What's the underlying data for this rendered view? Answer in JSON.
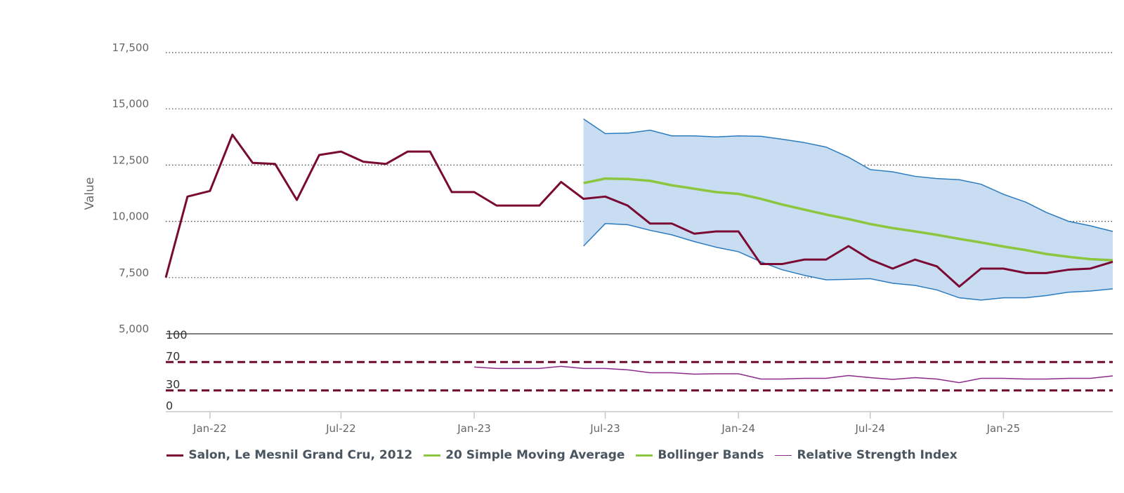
{
  "chart_data": {
    "type": "line",
    "ylabel": "Value",
    "ylim": [
      5000,
      17500
    ],
    "yticks": [
      "5,000",
      "7,500",
      "10,000",
      "12,500",
      "15,000",
      "17,500"
    ],
    "xticks": [
      "Jan-22",
      "Jul-22",
      "Jan-23",
      "Jul-23",
      "Jan-24",
      "Jul-24",
      "Jan-25"
    ],
    "grid": true,
    "legend_position": "bottom",
    "rsi_axis": {
      "ylim": [
        0,
        100
      ],
      "ticks": [
        "100",
        "70",
        "30",
        "0"
      ],
      "thresholds": [
        70,
        30
      ]
    },
    "series": [
      {
        "name": "Salon, Le Mesnil Grand Cru, 2012",
        "color": "#7a0a33",
        "points": [
          [
            "2021-11-01",
            7500
          ],
          [
            "2021-12-01",
            11100
          ],
          [
            "2022-01-01",
            11350
          ],
          [
            "2022-02-01",
            13850
          ],
          [
            "2022-03-01",
            12600
          ],
          [
            "2022-04-01",
            12550
          ],
          [
            "2022-05-01",
            10950
          ],
          [
            "2022-06-01",
            12950
          ],
          [
            "2022-07-01",
            13100
          ],
          [
            "2022-08-01",
            12650
          ],
          [
            "2022-09-01",
            12550
          ],
          [
            "2022-10-01",
            13100
          ],
          [
            "2022-11-01",
            13100
          ],
          [
            "2022-12-01",
            11300
          ],
          [
            "2023-01-01",
            11300
          ],
          [
            "2023-02-01",
            10700
          ],
          [
            "2023-03-01",
            10700
          ],
          [
            "2023-04-01",
            10700
          ],
          [
            "2023-05-01",
            11750
          ],
          [
            "2023-06-01",
            11000
          ],
          [
            "2023-07-01",
            11100
          ],
          [
            "2023-08-01",
            10700
          ],
          [
            "2023-09-01",
            9900
          ],
          [
            "2023-10-01",
            9900
          ],
          [
            "2023-11-01",
            9450
          ],
          [
            "2023-12-01",
            9550
          ],
          [
            "2024-01-01",
            9550
          ],
          [
            "2024-02-01",
            8100
          ],
          [
            "2024-03-01",
            8100
          ],
          [
            "2024-04-01",
            8300
          ],
          [
            "2024-05-01",
            8300
          ],
          [
            "2024-06-01",
            8900
          ],
          [
            "2024-07-01",
            8300
          ],
          [
            "2024-08-01",
            7900
          ],
          [
            "2024-09-01",
            8300
          ],
          [
            "2024-10-01",
            8000
          ],
          [
            "2024-11-01",
            7100
          ],
          [
            "2024-12-01",
            7900
          ],
          [
            "2025-01-01",
            7900
          ],
          [
            "2025-02-01",
            7700
          ],
          [
            "2025-03-01",
            7700
          ],
          [
            "2025-04-01",
            7850
          ],
          [
            "2025-05-01",
            7900
          ],
          [
            "2025-06-01",
            8200
          ]
        ]
      },
      {
        "name": "20 Simple Moving Average",
        "color": "#8cc63f",
        "points": [
          [
            "2023-06-01",
            11700
          ],
          [
            "2023-07-01",
            11900
          ],
          [
            "2023-08-01",
            11880
          ],
          [
            "2023-09-01",
            11800
          ],
          [
            "2023-10-01",
            11600
          ],
          [
            "2023-11-01",
            11450
          ],
          [
            "2023-12-01",
            11300
          ],
          [
            "2024-01-01",
            11220
          ],
          [
            "2024-02-01",
            11000
          ],
          [
            "2024-03-01",
            10750
          ],
          [
            "2024-04-01",
            10520
          ],
          [
            "2024-05-01",
            10300
          ],
          [
            "2024-06-01",
            10100
          ],
          [
            "2024-07-01",
            9880
          ],
          [
            "2024-08-01",
            9700
          ],
          [
            "2024-09-01",
            9550
          ],
          [
            "2024-10-01",
            9400
          ],
          [
            "2024-11-01",
            9220
          ],
          [
            "2024-12-01",
            9060
          ],
          [
            "2025-01-01",
            8880
          ],
          [
            "2025-02-01",
            8720
          ],
          [
            "2025-03-01",
            8550
          ],
          [
            "2025-04-01",
            8420
          ],
          [
            "2025-05-01",
            8320
          ],
          [
            "2025-06-01",
            8270
          ]
        ]
      },
      {
        "name": "Bollinger Bands",
        "color": "#8cc63f",
        "band_fill": "#c9ddf2",
        "band_line": "#2b7bbf",
        "upper": [
          [
            "2023-06-01",
            14550
          ],
          [
            "2023-07-01",
            13900
          ],
          [
            "2023-08-01",
            13920
          ],
          [
            "2023-09-01",
            14050
          ],
          [
            "2023-10-01",
            13800
          ],
          [
            "2023-11-01",
            13800
          ],
          [
            "2023-12-01",
            13750
          ],
          [
            "2024-01-01",
            13800
          ],
          [
            "2024-02-01",
            13780
          ],
          [
            "2024-03-01",
            13650
          ],
          [
            "2024-04-01",
            13500
          ],
          [
            "2024-05-01",
            13300
          ],
          [
            "2024-06-01",
            12850
          ],
          [
            "2024-07-01",
            12300
          ],
          [
            "2024-08-01",
            12200
          ],
          [
            "2024-09-01",
            12000
          ],
          [
            "2024-10-01",
            11900
          ],
          [
            "2024-11-01",
            11850
          ],
          [
            "2024-12-01",
            11650
          ],
          [
            "2025-01-01",
            11200
          ],
          [
            "2025-02-01",
            10850
          ],
          [
            "2025-03-01",
            10400
          ],
          [
            "2025-04-01",
            10000
          ],
          [
            "2025-05-01",
            9800
          ],
          [
            "2025-06-01",
            9550
          ]
        ],
        "lower": [
          [
            "2023-06-01",
            8900
          ],
          [
            "2023-07-01",
            9900
          ],
          [
            "2023-08-01",
            9850
          ],
          [
            "2023-09-01",
            9600
          ],
          [
            "2023-10-01",
            9400
          ],
          [
            "2023-11-01",
            9100
          ],
          [
            "2023-12-01",
            8850
          ],
          [
            "2024-01-01",
            8650
          ],
          [
            "2024-02-01",
            8200
          ],
          [
            "2024-03-01",
            7850
          ],
          [
            "2024-04-01",
            7600
          ],
          [
            "2024-05-01",
            7400
          ],
          [
            "2024-06-01",
            7420
          ],
          [
            "2024-07-01",
            7450
          ],
          [
            "2024-08-01",
            7250
          ],
          [
            "2024-09-01",
            7150
          ],
          [
            "2024-10-01",
            6950
          ],
          [
            "2024-11-01",
            6600
          ],
          [
            "2024-12-01",
            6500
          ],
          [
            "2025-01-01",
            6600
          ],
          [
            "2025-02-01",
            6600
          ],
          [
            "2025-03-01",
            6700
          ],
          [
            "2025-04-01",
            6850
          ],
          [
            "2025-05-01",
            6900
          ],
          [
            "2025-06-01",
            7000
          ]
        ]
      },
      {
        "name": "Relative Strength Index",
        "color": "#8e2a8a",
        "points": [
          [
            "2023-01-01",
            63
          ],
          [
            "2023-02-01",
            61
          ],
          [
            "2023-03-01",
            61
          ],
          [
            "2023-04-01",
            61
          ],
          [
            "2023-05-01",
            64
          ],
          [
            "2023-06-01",
            61
          ],
          [
            "2023-07-01",
            61
          ],
          [
            "2023-08-01",
            59
          ],
          [
            "2023-09-01",
            55
          ],
          [
            "2023-10-01",
            55
          ],
          [
            "2023-11-01",
            53
          ],
          [
            "2023-12-01",
            53.5
          ],
          [
            "2024-01-01",
            53.5
          ],
          [
            "2024-02-01",
            46
          ],
          [
            "2024-03-01",
            46
          ],
          [
            "2024-04-01",
            47
          ],
          [
            "2024-05-01",
            47
          ],
          [
            "2024-06-01",
            51
          ],
          [
            "2024-07-01",
            48
          ],
          [
            "2024-08-01",
            45.5
          ],
          [
            "2024-09-01",
            48
          ],
          [
            "2024-10-01",
            46
          ],
          [
            "2024-11-01",
            41
          ],
          [
            "2024-12-01",
            47
          ],
          [
            "2025-01-01",
            47
          ],
          [
            "2025-02-01",
            46
          ],
          [
            "2025-03-01",
            46
          ],
          [
            "2025-04-01",
            47
          ],
          [
            "2025-05-01",
            47
          ],
          [
            "2025-06-01",
            50.5
          ]
        ]
      }
    ]
  }
}
